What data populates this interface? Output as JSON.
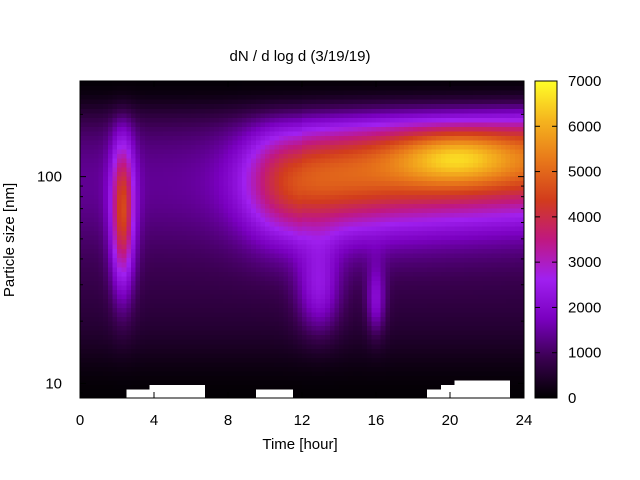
{
  "chart_data": {
    "type": "heatmap",
    "title": "dN / d log d (3/19/19)",
    "xlabel": "Time [hour]",
    "ylabel": "Particle size [nm]",
    "x_range": [
      0,
      24
    ],
    "x_ticks": [
      0,
      4,
      8,
      12,
      16,
      20,
      24
    ],
    "y_scale": "log",
    "y_range": [
      8.5,
      290
    ],
    "y_ticks": [
      10,
      100
    ],
    "z_range": [
      0,
      7000
    ],
    "colorbar_ticks": [
      0,
      1000,
      2000,
      3000,
      4000,
      5000,
      6000,
      7000
    ],
    "colormap": [
      "#000000",
      "#3a0050",
      "#7a00c0",
      "#a020f0",
      "#c01880",
      "#d23c1c",
      "#e8781a",
      "#f5b41e",
      "#ffff28"
    ],
    "grid": false,
    "features": [
      {
        "time": 2.3,
        "diameter_nm": 60,
        "peak": 3600
      },
      {
        "time": 12.0,
        "diameter_nm": 125,
        "peak": 4000
      },
      {
        "time": 20.0,
        "diameter_nm": 130,
        "peak": 5600
      }
    ]
  }
}
